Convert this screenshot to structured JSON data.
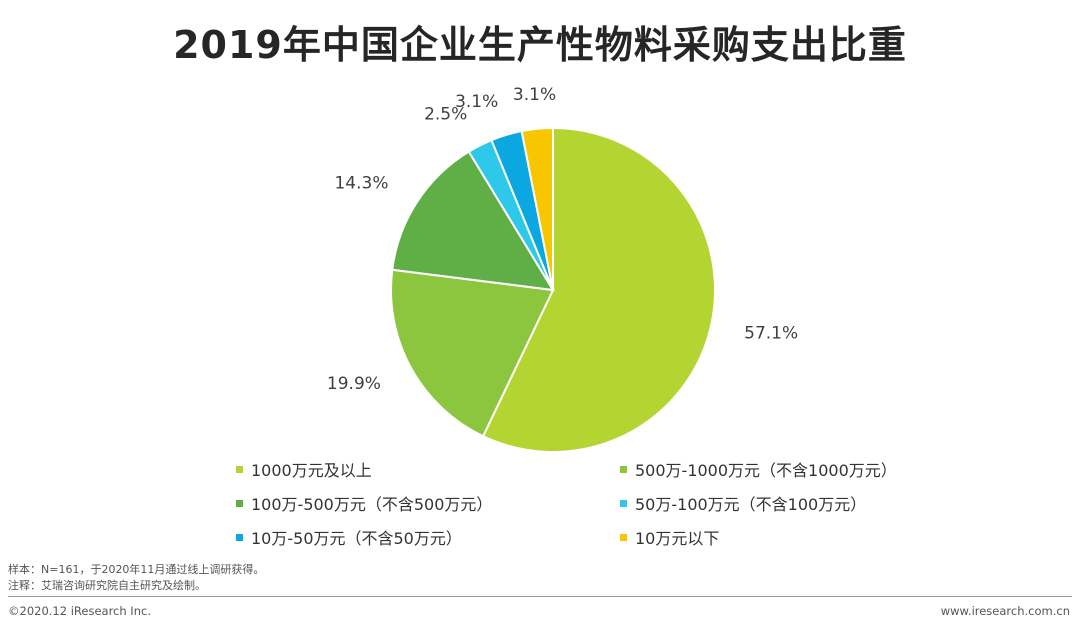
{
  "title": "2019年中国企业生产性物料采购支出比重",
  "chart_data": {
    "type": "pie",
    "title": "2019年中国企业生产性物料采购支出比重",
    "slices": [
      {
        "label": "1000万元及以上",
        "value": 57.1,
        "display": "57.1%",
        "color": "#b4d432"
      },
      {
        "label": "500万-1000万元（不含1000万元）",
        "value": 19.9,
        "display": "19.9%",
        "color": "#8cc63f"
      },
      {
        "label": "100万-500万元（不含500万元）",
        "value": 14.3,
        "display": "14.3%",
        "color": "#5fae46"
      },
      {
        "label": "50万-100万元（不含100万元）",
        "value": 2.5,
        "display": "2.5%",
        "color": "#2ec8ea"
      },
      {
        "label": "10万-50万元（不含50万元）",
        "value": 3.1,
        "display": "3.1%",
        "color": "#0aa7e0"
      },
      {
        "label": "10万元以下",
        "value": 3.1,
        "display": "3.1%",
        "color": "#f7c600"
      }
    ],
    "legend_position": "bottom"
  },
  "footnotes": {
    "sample": "样本：N=161，于2020年11月通过线上调研获得。",
    "note": "注释：艾瑞咨询研究院自主研究及绘制。"
  },
  "footer": {
    "copyright": "©2020.12 iResearch Inc.",
    "website": "www.iresearch.com.cn"
  }
}
